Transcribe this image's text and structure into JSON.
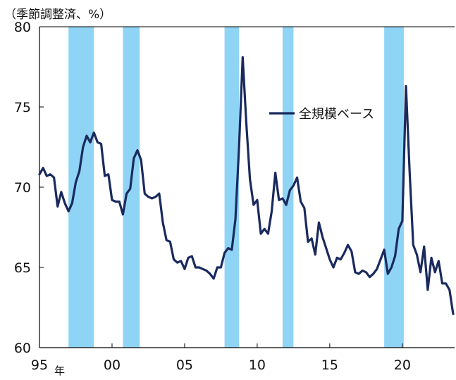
{
  "chart_data": {
    "type": "line",
    "unit_label": "（季節調整済、%）",
    "ylim": [
      60,
      80
    ],
    "yticks": [
      60,
      65,
      70,
      75,
      80
    ],
    "xlim": [
      1995.0,
      2023.6
    ],
    "xticks": [
      {
        "x": 1995,
        "label": "95"
      },
      {
        "x": 2000,
        "label": "00"
      },
      {
        "x": 2005,
        "label": "05"
      },
      {
        "x": 2010,
        "label": "10"
      },
      {
        "x": 2015,
        "label": "15"
      },
      {
        "x": 2020,
        "label": "20"
      }
    ],
    "x_suffix": "年",
    "grid": false,
    "legend": {
      "position": "top-right",
      "label": "全規模ベース"
    },
    "colors": {
      "line": "#1a2a5e",
      "band": "#8fd4f5",
      "axis": "#000000"
    },
    "shaded_periods": [
      [
        1997.0,
        1998.75
      ],
      [
        2000.75,
        2001.9
      ],
      [
        2007.75,
        2008.75
      ],
      [
        2011.75,
        2012.5
      ],
      [
        2018.75,
        2020.1
      ]
    ],
    "series": [
      {
        "name": "全規模ベース",
        "points": [
          [
            1995.0,
            70.8
          ],
          [
            1995.25,
            71.2
          ],
          [
            1995.5,
            70.7
          ],
          [
            1995.75,
            70.8
          ],
          [
            1996.0,
            70.6
          ],
          [
            1996.25,
            68.8
          ],
          [
            1996.5,
            69.7
          ],
          [
            1996.75,
            69.0
          ],
          [
            1997.0,
            68.5
          ],
          [
            1997.25,
            69.0
          ],
          [
            1997.5,
            70.3
          ],
          [
            1997.75,
            71.0
          ],
          [
            1998.0,
            72.5
          ],
          [
            1998.25,
            73.2
          ],
          [
            1998.5,
            72.8
          ],
          [
            1998.75,
            73.4
          ],
          [
            1999.0,
            72.8
          ],
          [
            1999.25,
            72.7
          ],
          [
            1999.5,
            70.7
          ],
          [
            1999.75,
            70.8
          ],
          [
            2000.0,
            69.2
          ],
          [
            2000.25,
            69.1
          ],
          [
            2000.5,
            69.1
          ],
          [
            2000.75,
            68.3
          ],
          [
            2001.0,
            69.6
          ],
          [
            2001.25,
            69.9
          ],
          [
            2001.5,
            71.8
          ],
          [
            2001.75,
            72.3
          ],
          [
            2002.0,
            71.7
          ],
          [
            2002.25,
            69.6
          ],
          [
            2002.5,
            69.4
          ],
          [
            2002.75,
            69.3
          ],
          [
            2003.0,
            69.4
          ],
          [
            2003.25,
            69.6
          ],
          [
            2003.5,
            67.8
          ],
          [
            2003.75,
            66.7
          ],
          [
            2004.0,
            66.6
          ],
          [
            2004.25,
            65.5
          ],
          [
            2004.5,
            65.3
          ],
          [
            2004.75,
            65.4
          ],
          [
            2005.0,
            64.9
          ],
          [
            2005.25,
            65.6
          ],
          [
            2005.5,
            65.7
          ],
          [
            2005.75,
            65.0
          ],
          [
            2006.0,
            65.0
          ],
          [
            2006.25,
            64.9
          ],
          [
            2006.5,
            64.8
          ],
          [
            2006.75,
            64.6
          ],
          [
            2007.0,
            64.3
          ],
          [
            2007.25,
            65.0
          ],
          [
            2007.5,
            65.0
          ],
          [
            2007.75,
            65.9
          ],
          [
            2008.0,
            66.2
          ],
          [
            2008.25,
            66.1
          ],
          [
            2008.5,
            68.0
          ],
          [
            2008.75,
            72.5
          ],
          [
            2009.0,
            78.1
          ],
          [
            2009.25,
            74.0
          ],
          [
            2009.5,
            70.5
          ],
          [
            2009.75,
            68.9
          ],
          [
            2010.0,
            69.2
          ],
          [
            2010.25,
            67.1
          ],
          [
            2010.5,
            67.4
          ],
          [
            2010.75,
            67.1
          ],
          [
            2011.0,
            68.5
          ],
          [
            2011.25,
            70.9
          ],
          [
            2011.5,
            69.2
          ],
          [
            2011.75,
            69.3
          ],
          [
            2012.0,
            68.9
          ],
          [
            2012.25,
            69.8
          ],
          [
            2012.5,
            70.1
          ],
          [
            2012.75,
            70.6
          ],
          [
            2013.0,
            69.1
          ],
          [
            2013.25,
            68.7
          ],
          [
            2013.5,
            66.6
          ],
          [
            2013.75,
            66.8
          ],
          [
            2014.0,
            65.8
          ],
          [
            2014.25,
            67.8
          ],
          [
            2014.5,
            66.9
          ],
          [
            2014.75,
            66.2
          ],
          [
            2015.0,
            65.5
          ],
          [
            2015.25,
            65.0
          ],
          [
            2015.5,
            65.6
          ],
          [
            2015.75,
            65.5
          ],
          [
            2016.0,
            65.9
          ],
          [
            2016.25,
            66.4
          ],
          [
            2016.5,
            66.0
          ],
          [
            2016.75,
            64.7
          ],
          [
            2017.0,
            64.6
          ],
          [
            2017.25,
            64.8
          ],
          [
            2017.5,
            64.7
          ],
          [
            2017.75,
            64.4
          ],
          [
            2018.0,
            64.6
          ],
          [
            2018.25,
            64.9
          ],
          [
            2018.5,
            65.5
          ],
          [
            2018.75,
            66.1
          ],
          [
            2019.0,
            64.6
          ],
          [
            2019.25,
            65.0
          ],
          [
            2019.5,
            65.7
          ],
          [
            2019.75,
            67.4
          ],
          [
            2020.0,
            67.9
          ],
          [
            2020.25,
            76.3
          ],
          [
            2020.5,
            71.0
          ],
          [
            2020.75,
            66.4
          ],
          [
            2021.0,
            65.8
          ],
          [
            2021.25,
            64.7
          ],
          [
            2021.5,
            66.3
          ],
          [
            2021.75,
            63.6
          ],
          [
            2022.0,
            65.6
          ],
          [
            2022.25,
            64.7
          ],
          [
            2022.5,
            65.4
          ],
          [
            2022.75,
            64.0
          ],
          [
            2023.0,
            64.0
          ],
          [
            2023.25,
            63.6
          ],
          [
            2023.5,
            62.1
          ]
        ]
      }
    ]
  }
}
